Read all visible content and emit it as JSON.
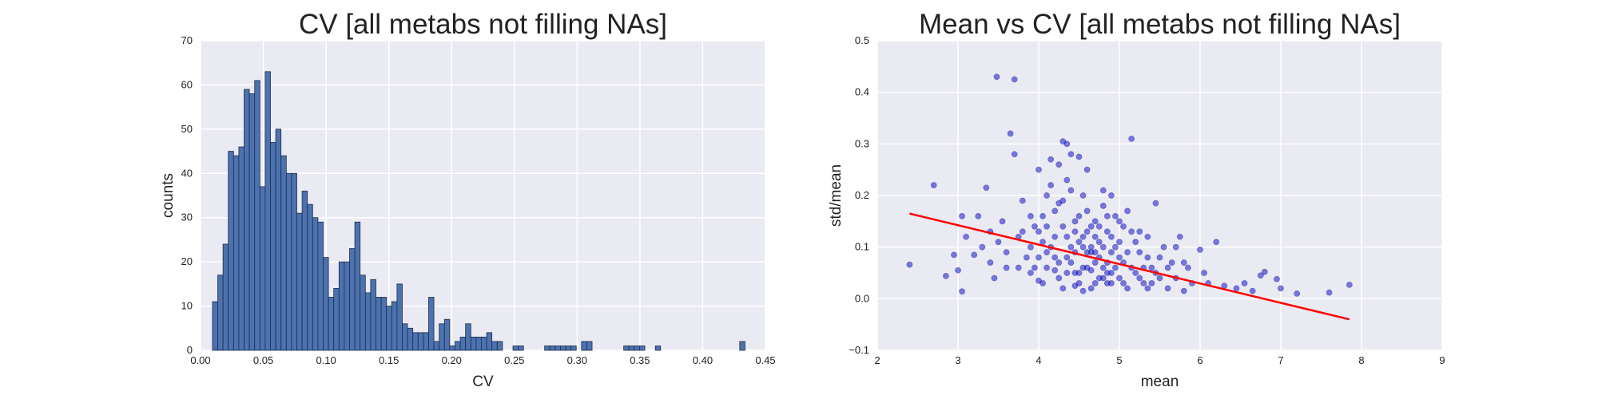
{
  "chart_data": [
    {
      "type": "bar",
      "title": "CV [all metabs not filling NAs]",
      "xlabel": "CV",
      "ylabel": "counts",
      "xlim": [
        0,
        0.45
      ],
      "ylim": [
        0,
        70
      ],
      "xticks": [
        "0.00",
        "0.05",
        "0.10",
        "0.15",
        "0.20",
        "0.25",
        "0.30",
        "0.35",
        "0.40",
        "0.45"
      ],
      "yticks": [
        "0",
        "10",
        "20",
        "30",
        "40",
        "50",
        "60",
        "70"
      ],
      "grid": true,
      "bin_start": 0.0095,
      "bin_width": 0.0042,
      "values": [
        11,
        17,
        24,
        45,
        44,
        46,
        59,
        58,
        61,
        37,
        63,
        47,
        50,
        44,
        40,
        40,
        31,
        36,
        33,
        30,
        29,
        21,
        12,
        14,
        20,
        20,
        23,
        29,
        17,
        13,
        16,
        12,
        12,
        10,
        11,
        15,
        6,
        5,
        4,
        4,
        4,
        12,
        2,
        6,
        7,
        1,
        2,
        3,
        6,
        3,
        3,
        3,
        4,
        2,
        2,
        0,
        0,
        1,
        1,
        0,
        0,
        0,
        0,
        1,
        1,
        1,
        1,
        1,
        1,
        0,
        2,
        2,
        0,
        0,
        0,
        0,
        0,
        0,
        1,
        1,
        1,
        1,
        0,
        0,
        1,
        0,
        0,
        0,
        0,
        0,
        0,
        0,
        0,
        0,
        0,
        0,
        0,
        0,
        0,
        0,
        2
      ]
    },
    {
      "type": "scatter",
      "title": "Mean vs CV [all metabs not filling NAs]",
      "xlabel": "mean",
      "ylabel": "std/mean",
      "xlim": [
        2,
        9
      ],
      "ylim": [
        -0.1,
        0.5
      ],
      "xticks": [
        "2",
        "3",
        "4",
        "5",
        "6",
        "7",
        "8",
        "9"
      ],
      "yticks": [
        "−0.1",
        "0.0",
        "0.1",
        "0.2",
        "0.3",
        "0.4",
        "0.5"
      ],
      "grid": true,
      "point_color": "#0000cc",
      "fit_line": {
        "color": "#ff0000",
        "points": [
          [
            2.4,
            0.165
          ],
          [
            7.85,
            -0.04
          ]
        ]
      },
      "points": [
        [
          2.4,
          0.066
        ],
        [
          2.7,
          0.22
        ],
        [
          2.85,
          0.044
        ],
        [
          3.0,
          0.055
        ],
        [
          3.05,
          0.014
        ],
        [
          3.05,
          0.16
        ],
        [
          3.1,
          0.12
        ],
        [
          2.95,
          0.085
        ],
        [
          3.2,
          0.085
        ],
        [
          3.25,
          0.16
        ],
        [
          3.3,
          0.1
        ],
        [
          3.35,
          0.215
        ],
        [
          3.4,
          0.13
        ],
        [
          3.4,
          0.07
        ],
        [
          3.45,
          0.04
        ],
        [
          3.48,
          0.43
        ],
        [
          3.55,
          0.15
        ],
        [
          3.6,
          0.06
        ],
        [
          3.65,
          0.32
        ],
        [
          3.7,
          0.425
        ],
        [
          3.7,
          0.28
        ],
        [
          3.75,
          0.12
        ],
        [
          3.8,
          0.19
        ],
        [
          3.85,
          0.08
        ],
        [
          3.9,
          0.1
        ],
        [
          3.9,
          0.05
        ],
        [
          3.95,
          0.14
        ],
        [
          4.0,
          0.035
        ],
        [
          4.0,
          0.25
        ],
        [
          4.05,
          0.16
        ],
        [
          4.1,
          0.2
        ],
        [
          4.1,
          0.09
        ],
        [
          4.15,
          0.27
        ],
        [
          4.2,
          0.055
        ],
        [
          4.2,
          0.12
        ],
        [
          4.25,
          0.185
        ],
        [
          4.3,
          0.02
        ],
        [
          4.3,
          0.305
        ],
        [
          4.35,
          0.3
        ],
        [
          4.35,
          0.08
        ],
        [
          4.4,
          0.1
        ],
        [
          4.4,
          0.28
        ],
        [
          4.45,
          0.05
        ],
        [
          4.45,
          0.15
        ],
        [
          4.5,
          0.275
        ],
        [
          4.5,
          0.03
        ],
        [
          4.55,
          0.12
        ],
        [
          4.55,
          0.2
        ],
        [
          4.6,
          0.06
        ],
        [
          4.6,
          0.25
        ],
        [
          4.65,
          0.09
        ],
        [
          4.65,
          0.02
        ],
        [
          4.7,
          0.15
        ],
        [
          4.7,
          0.07
        ],
        [
          4.75,
          0.04
        ],
        [
          4.75,
          0.11
        ],
        [
          4.8,
          0.18
        ],
        [
          4.8,
          0.06
        ],
        [
          4.85,
          0.03
        ],
        [
          4.85,
          0.13
        ],
        [
          4.9,
          0.09
        ],
        [
          4.9,
          0.05
        ],
        [
          4.95,
          0.16
        ],
        [
          5.0,
          0.04
        ],
        [
          5.0,
          0.11
        ],
        [
          5.05,
          0.07
        ],
        [
          5.1,
          0.02
        ],
        [
          5.15,
          0.31
        ],
        [
          5.15,
          0.13
        ],
        [
          5.2,
          0.05
        ],
        [
          5.25,
          0.09
        ],
        [
          5.3,
          0.03
        ],
        [
          5.35,
          0.12
        ],
        [
          5.4,
          0.06
        ],
        [
          5.45,
          0.185
        ],
        [
          5.5,
          0.04
        ],
        [
          5.55,
          0.1
        ],
        [
          5.6,
          0.02
        ],
        [
          5.65,
          0.07
        ],
        [
          5.7,
          0.04
        ],
        [
          5.75,
          0.12
        ],
        [
          5.8,
          0.015
        ],
        [
          5.85,
          0.06
        ],
        [
          5.9,
          0.03
        ],
        [
          6.0,
          0.095
        ],
        [
          6.05,
          0.05
        ],
        [
          6.1,
          0.03
        ],
        [
          6.2,
          0.11
        ],
        [
          6.3,
          0.025
        ],
        [
          6.45,
          0.02
        ],
        [
          6.55,
          0.03
        ],
        [
          6.65,
          0.015
        ],
        [
          6.75,
          0.045
        ],
        [
          6.8,
          0.052
        ],
        [
          6.95,
          0.038
        ],
        [
          7.0,
          0.02
        ],
        [
          7.2,
          0.01
        ],
        [
          7.6,
          0.012
        ],
        [
          7.85,
          0.027
        ],
        [
          4.2,
          0.08
        ],
        [
          4.3,
          0.14
        ],
        [
          4.35,
          0.05
        ],
        [
          4.45,
          0.09
        ],
        [
          4.5,
          0.11
        ],
        [
          4.55,
          0.06
        ],
        [
          4.6,
          0.13
        ],
        [
          4.65,
          0.1
        ],
        [
          4.7,
          0.03
        ],
        [
          4.75,
          0.08
        ],
        [
          4.8,
          0.1
        ],
        [
          4.85,
          0.07
        ],
        [
          4.9,
          0.12
        ],
        [
          4.95,
          0.06
        ],
        [
          5.0,
          0.08
        ],
        [
          5.05,
          0.14
        ],
        [
          4.1,
          0.06
        ],
        [
          4.15,
          0.1
        ],
        [
          4.25,
          0.04
        ],
        [
          4.4,
          0.07
        ],
        [
          4.5,
          0.05
        ],
        [
          4.6,
          0.09
        ],
        [
          4.7,
          0.12
        ],
        [
          4.8,
          0.04
        ],
        [
          4.9,
          0.03
        ],
        [
          5.1,
          0.09
        ],
        [
          5.2,
          0.11
        ],
        [
          5.3,
          0.06
        ],
        [
          5.4,
          0.03
        ],
        [
          5.5,
          0.08
        ],
        [
          4.05,
          0.11
        ],
        [
          4.0,
          0.08
        ],
        [
          3.95,
          0.06
        ],
        [
          4.3,
          0.19
        ],
        [
          4.4,
          0.21
        ],
        [
          4.6,
          0.17
        ],
        [
          4.9,
          0.2
        ],
        [
          5.0,
          0.15
        ],
        [
          4.2,
          0.17
        ],
        [
          4.15,
          0.22
        ],
        [
          4.05,
          0.03
        ],
        [
          4.45,
          0.025
        ],
        [
          4.55,
          0.015
        ],
        [
          4.65,
          0.055
        ],
        [
          4.75,
          0.14
        ],
        [
          4.85,
          0.16
        ],
        [
          5.25,
          0.04
        ],
        [
          5.35,
          0.08
        ],
        [
          5.45,
          0.05
        ],
        [
          5.6,
          0.06
        ],
        [
          5.7,
          0.1
        ],
        [
          5.8,
          0.07
        ],
        [
          3.8,
          0.13
        ],
        [
          3.75,
          0.06
        ],
        [
          3.6,
          0.09
        ],
        [
          3.5,
          0.11
        ],
        [
          4.0,
          0.13
        ],
        [
          4.1,
          0.14
        ],
        [
          4.35,
          0.12
        ],
        [
          4.55,
          0.1
        ],
        [
          4.7,
          0.09
        ],
        [
          4.95,
          0.1
        ],
        [
          5.15,
          0.06
        ],
        [
          5.35,
          0.02
        ],
        [
          4.25,
          0.07
        ],
        [
          4.45,
          0.13
        ],
        [
          4.65,
          0.14
        ],
        [
          4.85,
          0.05
        ],
        [
          5.05,
          0.03
        ],
        [
          5.25,
          0.13
        ],
        [
          3.9,
          0.16
        ],
        [
          4.25,
          0.26
        ],
        [
          4.35,
          0.23
        ],
        [
          4.5,
          0.16
        ],
        [
          4.8,
          0.21
        ],
        [
          5.1,
          0.17
        ]
      ]
    }
  ]
}
